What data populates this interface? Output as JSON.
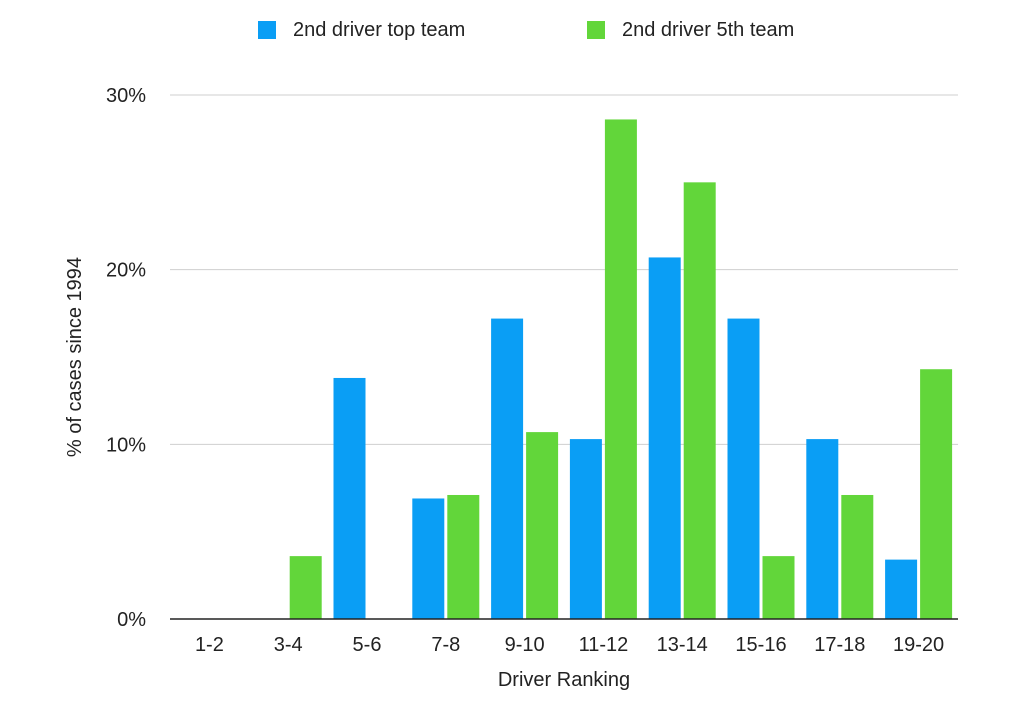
{
  "chart_data": {
    "type": "bar",
    "title": "",
    "xlabel": "Driver Ranking",
    "ylabel": "% of cases since 1994",
    "categories": [
      "1-2",
      "3-4",
      "5-6",
      "7-8",
      "9-10",
      "11-12",
      "13-14",
      "15-16",
      "17-18",
      "19-20"
    ],
    "series": [
      {
        "name": "2nd driver top team",
        "color": "#0a9ef5",
        "values": [
          0,
          0,
          13.8,
          6.9,
          17.2,
          10.3,
          20.7,
          17.2,
          10.3,
          3.4
        ]
      },
      {
        "name": "2nd driver 5th team",
        "color": "#62d63a",
        "values": [
          0,
          3.6,
          0,
          7.1,
          10.7,
          28.6,
          25.0,
          3.6,
          7.1,
          14.3
        ]
      }
    ],
    "ylim": [
      0,
      30
    ],
    "yticks": [
      0,
      10,
      20,
      30
    ],
    "ytick_labels": [
      "0%",
      "10%",
      "20%",
      "30%"
    ],
    "grid": true,
    "legend_position": "top"
  }
}
